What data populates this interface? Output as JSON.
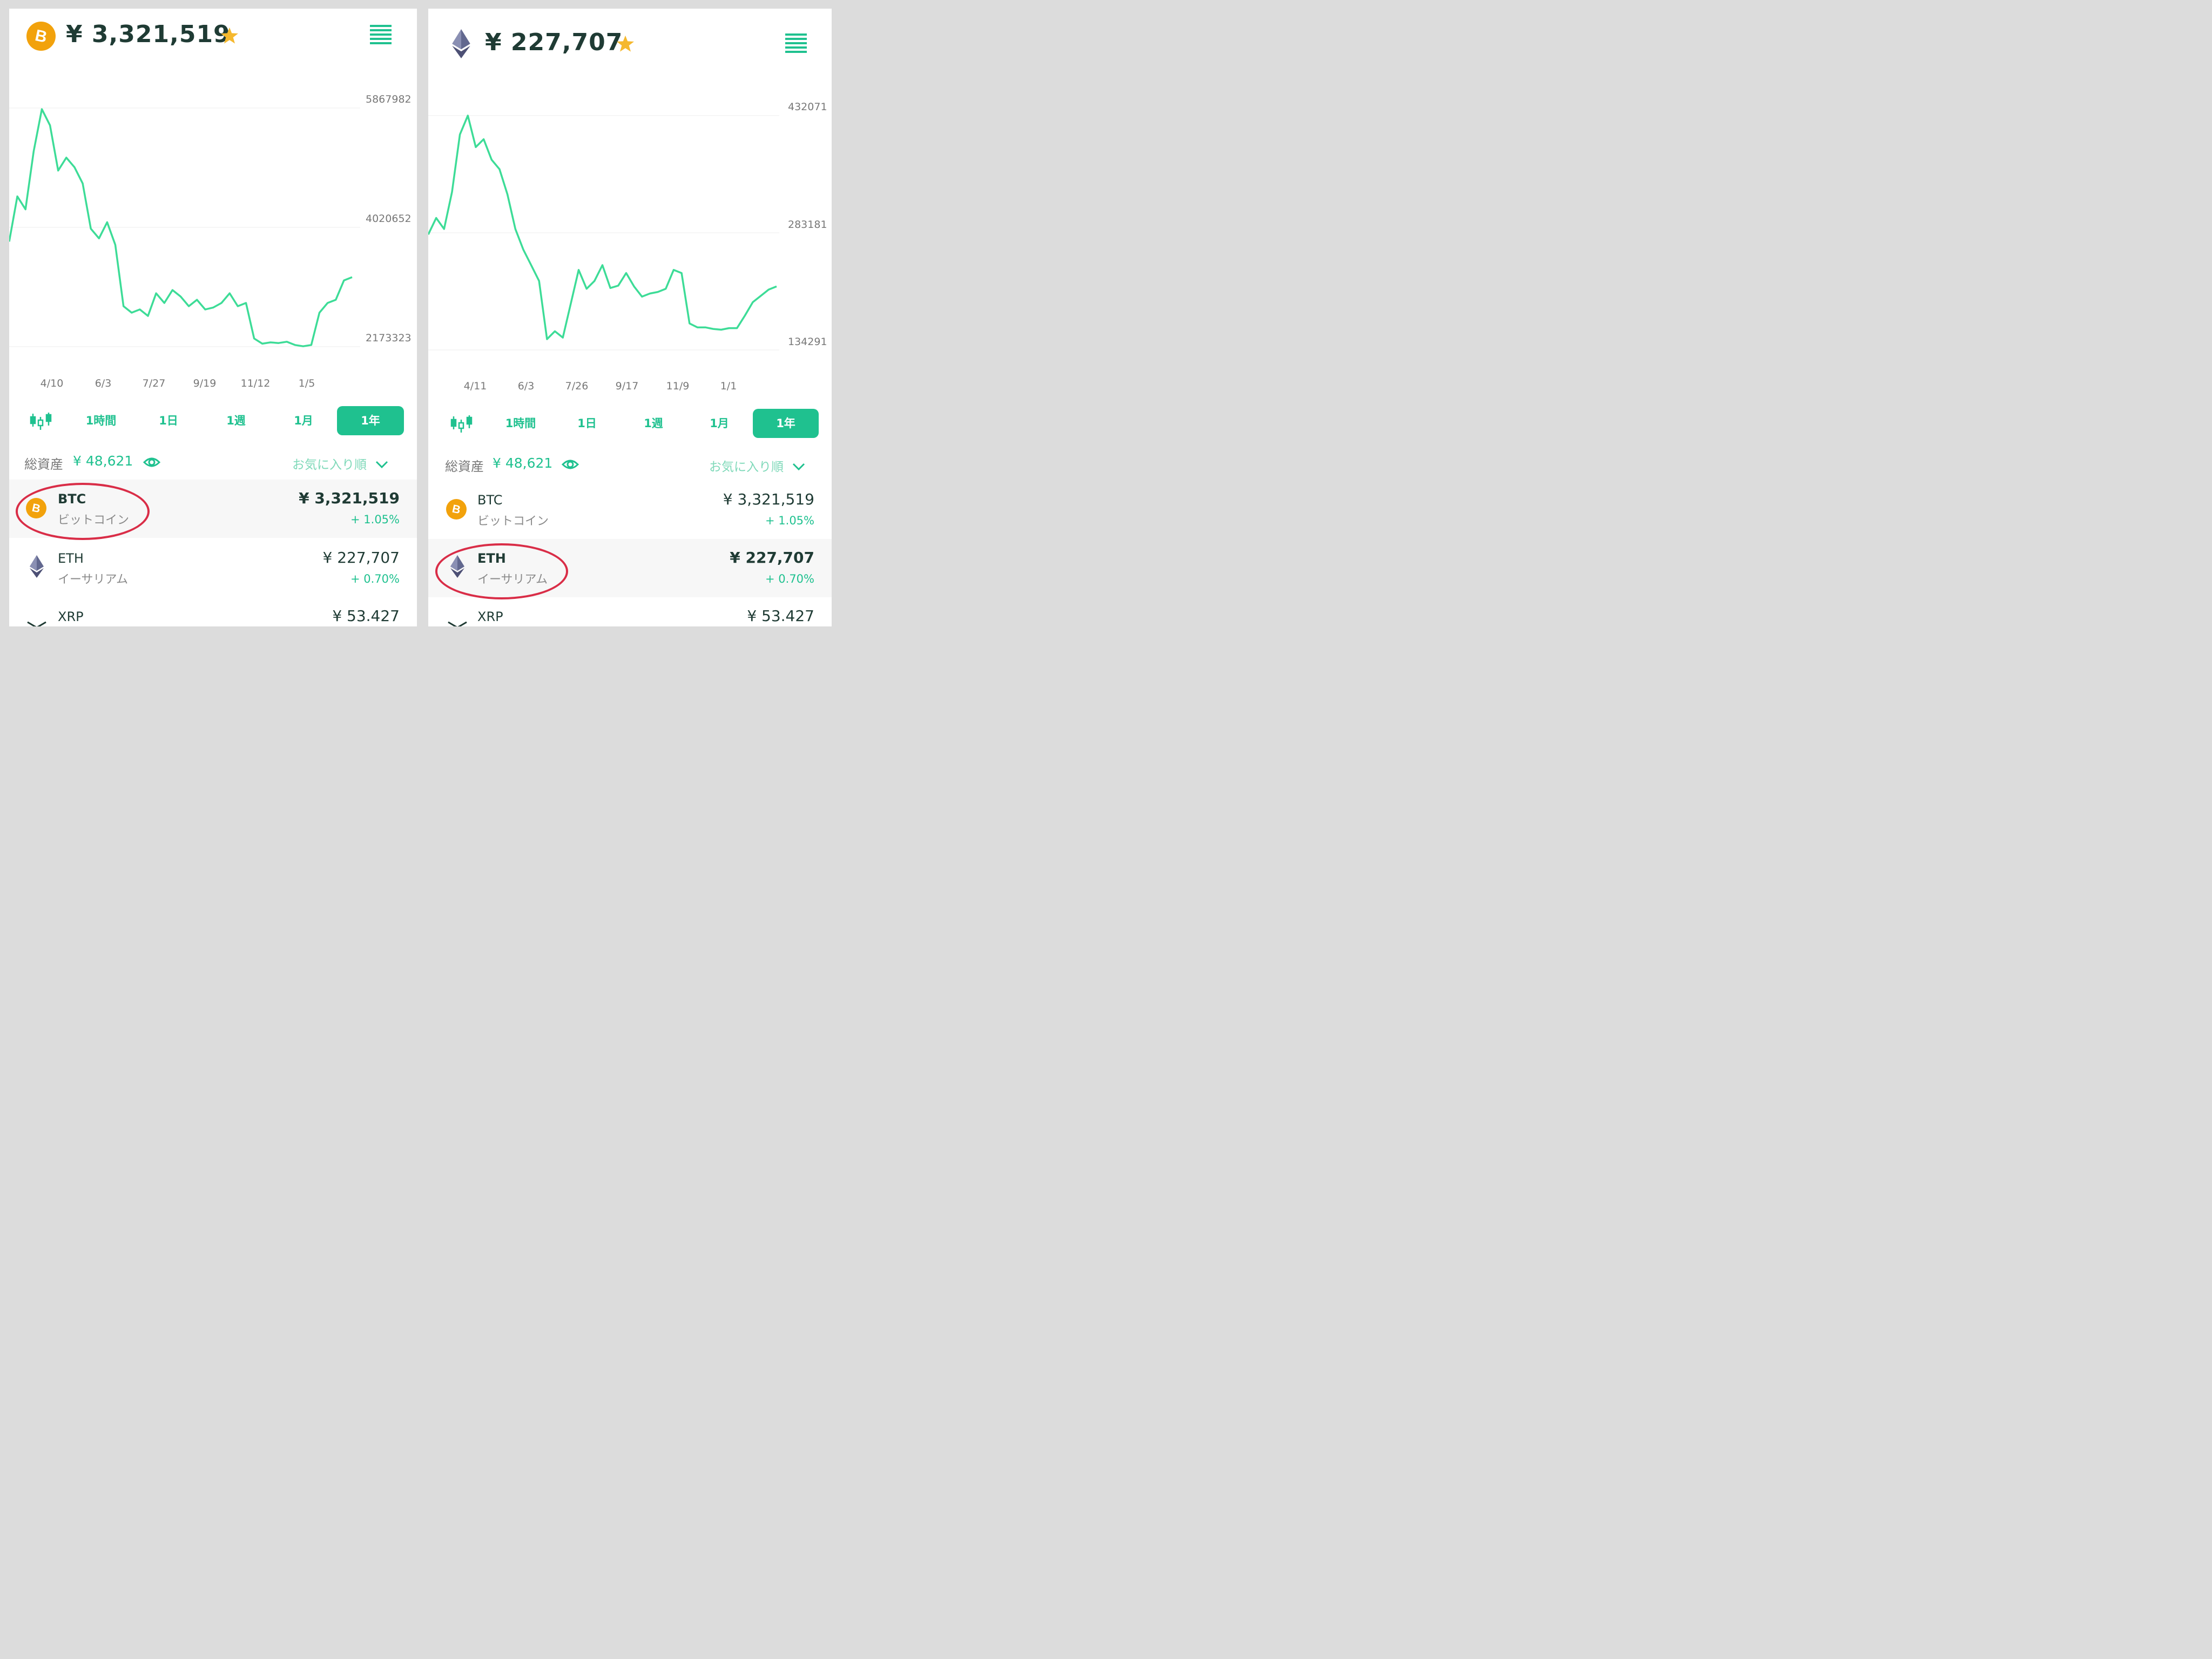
{
  "left": {
    "header": {
      "price": "¥ 3,321,519"
    },
    "chart": {
      "y_labels": [
        "5867982",
        "4020652",
        "2173323"
      ],
      "x_labels": [
        "4/10",
        "6/3",
        "7/27",
        "9/19",
        "11/12",
        "1/5"
      ]
    },
    "timeframes": [
      "1時間",
      "1日",
      "1週",
      "1月",
      "1年"
    ],
    "total_assets": {
      "label": "総資産",
      "value": "¥ 48,621"
    },
    "sort_label": "お気に入り順",
    "coins": [
      {
        "symbol": "BTC",
        "name": "ビットコイン",
        "price": "¥ 3,321,519",
        "change": "+ 1.05%"
      },
      {
        "symbol": "ETH",
        "name": "イーサリアム",
        "price": "¥ 227,707",
        "change": "+ 0.70%"
      },
      {
        "symbol": "XRP",
        "price": "¥ 53.427"
      }
    ]
  },
  "right": {
    "header": {
      "price": "¥ 227,707"
    },
    "chart": {
      "y_labels": [
        "432071",
        "283181",
        "134291"
      ],
      "x_labels": [
        "4/11",
        "6/3",
        "7/26",
        "9/17",
        "11/9",
        "1/1"
      ]
    },
    "timeframes": [
      "1時間",
      "1日",
      "1週",
      "1月",
      "1年"
    ],
    "total_assets": {
      "label": "総資産",
      "value": "¥ 48,621"
    },
    "sort_label": "お気に入り順",
    "coins": [
      {
        "symbol": "BTC",
        "name": "ビットコイン",
        "price": "¥ 3,321,519",
        "change": "+ 1.05%"
      },
      {
        "symbol": "ETH",
        "name": "イーサリアム",
        "price": "¥ 227,707",
        "change": "+ 0.70%"
      },
      {
        "symbol": "XRP",
        "price": "¥ 53.427"
      }
    ]
  },
  "colors": {
    "accent": "#1fc18f",
    "star": "#f5b82e",
    "btc": "#f2a20c",
    "eth": "#5b5e86",
    "highlight_circle": "#d92d47"
  },
  "chart_data": [
    {
      "type": "line",
      "series": [
        {
          "values": [
            3.8,
            4.5,
            4.3,
            5.2,
            5.85,
            5.6,
            4.9,
            5.1,
            4.95,
            4.7,
            4.0,
            3.85,
            4.1,
            3.75,
            2.8,
            2.7,
            2.75,
            2.65,
            3.0,
            2.85,
            3.05,
            2.95,
            2.8,
            2.9,
            2.75,
            2.78,
            2.85,
            3.0,
            2.8,
            2.85,
            2.3,
            2.22,
            2.24,
            2.23,
            2.25,
            2.2,
            2.18,
            2.2,
            2.7,
            2.85,
            2.9,
            3.2,
            3.25
          ],
          "timeframe": "1年"
        }
      ],
      "x_tick_labels": [
        "4/10",
        "6/3",
        "7/27",
        "9/19",
        "11/12",
        "1/5"
      ],
      "y_tick_labels": [
        "5867982",
        "4020652",
        "2173323"
      ],
      "ylim": [
        2173323,
        5867982
      ],
      "grid": true
    },
    {
      "type": "line",
      "series": [
        {
          "values": [
            281000,
            302000,
            288000,
            335000,
            408000,
            432000,
            392000,
            402000,
            376000,
            364000,
            332000,
            288000,
            262000,
            242000,
            222000,
            148000,
            158000,
            150000,
            193000,
            236000,
            212000,
            222000,
            242000,
            213000,
            216000,
            232000,
            215000,
            202000,
            206000,
            208000,
            212000,
            236000,
            232000,
            168000,
            163000,
            163000,
            161000,
            160000,
            162000,
            162000,
            178000,
            195000,
            203000,
            211000,
            215000
          ]
        }
      ],
      "x_tick_labels": [
        "4/11",
        "6/3",
        "7/26",
        "9/17",
        "11/9",
        "1/1"
      ],
      "y_tick_labels": [
        "432071",
        "283181",
        "134291"
      ],
      "ylim": [
        134291,
        432071
      ],
      "grid": true
    }
  ]
}
